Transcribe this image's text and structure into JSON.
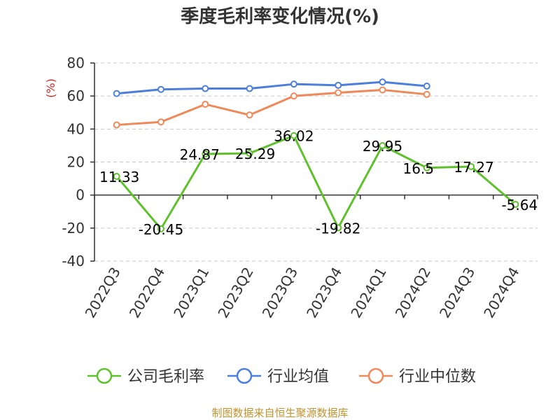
{
  "chart_data": {
    "type": "line",
    "title": "季度毛利率变化情况(%)",
    "ylabel": "(%)",
    "xlabel": "",
    "ylim": [
      -40,
      80
    ],
    "yticks": [
      -40,
      -20,
      0,
      20,
      40,
      60,
      80
    ],
    "grid": true,
    "legend_position": "bottom",
    "categories": [
      "2022Q3",
      "2022Q4",
      "2023Q1",
      "2023Q2",
      "2023Q3",
      "2023Q4",
      "2024Q1",
      "2024Q2",
      "2024Q3",
      "2024Q4"
    ],
    "series": [
      {
        "name": "公司毛利率",
        "color": "#5ec12c",
        "values": [
          11.33,
          -20.45,
          24.87,
          25.29,
          36.02,
          -19.82,
          29.95,
          16.5,
          17.27,
          -5.64
        ],
        "labels": [
          "11.33",
          "-20.45",
          "24.87",
          "25.29",
          "36.02",
          "-19.82",
          "29.95",
          "16.5",
          "17.27",
          "-5.64"
        ]
      },
      {
        "name": "行业均值",
        "color": "#4c7fdb",
        "values": [
          61.5,
          64.0,
          64.5,
          64.5,
          67.2,
          66.5,
          68.5,
          66.0,
          null,
          null
        ]
      },
      {
        "name": "行业中位数",
        "color": "#f0895a",
        "values": [
          42.5,
          44.3,
          55.0,
          48.5,
          60.0,
          62.0,
          63.7,
          61.0,
          null,
          null
        ]
      }
    ]
  },
  "source_text": "制图数据来自恒生聚源数据库"
}
